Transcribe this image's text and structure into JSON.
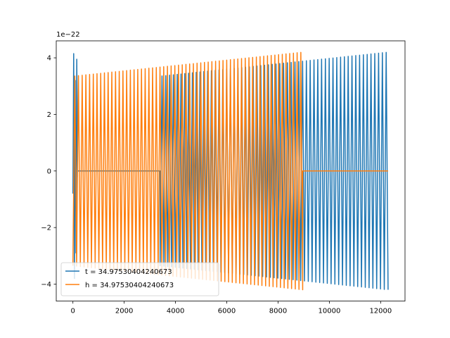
{
  "chart_data": {
    "type": "line",
    "title": "",
    "xlabel": "",
    "ylabel": "",
    "y_offset_label": "1e−22",
    "xlim": [
      -650,
      12950
    ],
    "ylim": [
      -4.6,
      4.6
    ],
    "x_ticks": [
      0,
      2000,
      4000,
      6000,
      8000,
      10000,
      12000
    ],
    "x_tick_labels": [
      "0",
      "2000",
      "4000",
      "6000",
      "8000",
      "10000",
      "12000"
    ],
    "y_ticks": [
      -4,
      -2,
      0,
      2,
      4
    ],
    "y_tick_labels": [
      "−4",
      "−2",
      "0",
      "2",
      "4"
    ],
    "grid": false,
    "legend_position": "lower-left",
    "series": [
      {
        "name": "t = 34.97530404240673",
        "color": "#1f77b4",
        "segments": [
          {
            "kind": "spike",
            "x": [
              0,
              30,
              60,
              90,
              120,
              150,
              180
            ],
            "y": [
              -0.8,
              4.15,
              -3.8,
              3.2,
              -2.9,
              3.95,
              -0.2
            ]
          },
          {
            "kind": "flat",
            "x_start": 180,
            "x_end": 3400,
            "y": 0
          },
          {
            "kind": "oscillation",
            "x_start": 3400,
            "x_end": 12290,
            "amp_start": 3.35,
            "amp_end": 4.2,
            "cycles": 60
          }
        ]
      },
      {
        "name": "h = 34.97530404240673",
        "color": "#ff7f0e",
        "segments": [
          {
            "kind": "oscillation",
            "x_start": 0,
            "x_end": 8960,
            "amp_start": 3.35,
            "amp_end": 4.2,
            "cycles": 62
          },
          {
            "kind": "flat",
            "x_start": 8960,
            "x_end": 12290,
            "y": 0
          }
        ]
      }
    ]
  }
}
